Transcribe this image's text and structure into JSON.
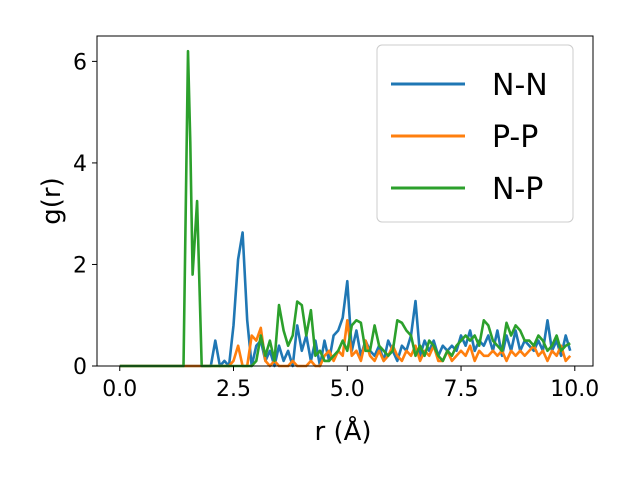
{
  "chart_data": {
    "type": "line",
    "title": "",
    "xlabel": "r (Å)",
    "ylabel": "g(r)",
    "xlim": [
      -0.5,
      10.4
    ],
    "ylim": [
      0,
      6.5
    ],
    "xticks": [
      0.0,
      2.5,
      5.0,
      7.5,
      10.0
    ],
    "xtick_labels": [
      "0.0",
      "2.5",
      "5.0",
      "7.5",
      "10.0"
    ],
    "yticks": [
      0,
      2,
      4,
      6
    ],
    "ytick_labels": [
      "0",
      "2",
      "4",
      "6"
    ],
    "grid": false,
    "legend_position": "top-right",
    "series": [
      {
        "name": "N-N",
        "color": "#1f77b4",
        "points": [
          [
            0,
            0
          ],
          [
            1.9,
            0
          ],
          [
            2.0,
            0
          ],
          [
            2.1,
            0.5
          ],
          [
            2.2,
            0
          ],
          [
            2.3,
            0.1
          ],
          [
            2.4,
            0
          ],
          [
            2.5,
            0.8
          ],
          [
            2.6,
            2.1
          ],
          [
            2.7,
            2.63
          ],
          [
            2.8,
            0.9
          ],
          [
            2.9,
            0
          ],
          [
            3.0,
            0.4
          ],
          [
            3.1,
            0.5
          ],
          [
            3.2,
            0.1
          ],
          [
            3.3,
            0.3
          ],
          [
            3.4,
            0
          ],
          [
            3.5,
            0.4
          ],
          [
            3.6,
            0.1
          ],
          [
            3.7,
            0.3
          ],
          [
            3.8,
            0
          ],
          [
            3.9,
            0.8
          ],
          [
            4.0,
            0.3
          ],
          [
            4.1,
            0.6
          ],
          [
            4.2,
            0.1
          ],
          [
            4.3,
            0.5
          ],
          [
            4.4,
            0
          ],
          [
            4.5,
            0.5
          ],
          [
            4.6,
            0.1
          ],
          [
            4.7,
            0.6
          ],
          [
            4.8,
            0.7
          ],
          [
            4.9,
            0.95
          ],
          [
            5.0,
            1.67
          ],
          [
            5.1,
            0.3
          ],
          [
            5.2,
            0.7
          ],
          [
            5.3,
            0.2
          ],
          [
            5.4,
            0.5
          ],
          [
            5.5,
            0.3
          ],
          [
            5.6,
            0.2
          ],
          [
            5.7,
            0.4
          ],
          [
            5.8,
            0.1
          ],
          [
            5.9,
            0.5
          ],
          [
            6.0,
            0.3
          ],
          [
            6.1,
            0.1
          ],
          [
            6.2,
            0.4
          ],
          [
            6.3,
            0.3
          ],
          [
            6.4,
            0.6
          ],
          [
            6.5,
            1.28
          ],
          [
            6.6,
            0.2
          ],
          [
            6.7,
            0.5
          ],
          [
            6.8,
            0.3
          ],
          [
            6.9,
            0.5
          ],
          [
            7.0,
            0.2
          ],
          [
            7.1,
            0.4
          ],
          [
            7.2,
            0.3
          ],
          [
            7.3,
            0.4
          ],
          [
            7.4,
            0.3
          ],
          [
            7.5,
            0.6
          ],
          [
            7.6,
            0.4
          ],
          [
            7.7,
            0.7
          ],
          [
            7.8,
            0.3
          ],
          [
            7.9,
            0.5
          ],
          [
            8.0,
            0.4
          ],
          [
            8.1,
            0.6
          ],
          [
            8.2,
            0.3
          ],
          [
            8.3,
            0.7
          ],
          [
            8.4,
            0.2
          ],
          [
            8.5,
            0.6
          ],
          [
            8.6,
            0.3
          ],
          [
            8.7,
            0.7
          ],
          [
            8.8,
            0.3
          ],
          [
            8.9,
            0.5
          ],
          [
            9.0,
            0.4
          ],
          [
            9.1,
            0.3
          ],
          [
            9.2,
            0.5
          ],
          [
            9.3,
            0.3
          ],
          [
            9.4,
            0.9
          ],
          [
            9.5,
            0.3
          ],
          [
            9.6,
            0.5
          ],
          [
            9.7,
            0.2
          ],
          [
            9.8,
            0.6
          ],
          [
            9.9,
            0.3
          ]
        ]
      },
      {
        "name": "P-P",
        "color": "#ff7f0e",
        "points": [
          [
            0,
            0
          ],
          [
            2.4,
            0
          ],
          [
            2.5,
            0.1
          ],
          [
            2.6,
            0.4
          ],
          [
            2.7,
            0
          ],
          [
            2.8,
            0
          ],
          [
            2.9,
            0.6
          ],
          [
            3.0,
            0.5
          ],
          [
            3.1,
            0.75
          ],
          [
            3.2,
            0.1
          ],
          [
            3.3,
            0
          ],
          [
            3.4,
            0.1
          ],
          [
            3.5,
            0
          ],
          [
            3.6,
            0
          ],
          [
            3.7,
            0
          ],
          [
            3.8,
            0.1
          ],
          [
            3.9,
            0
          ],
          [
            4.0,
            0
          ],
          [
            4.1,
            0
          ],
          [
            4.2,
            0.1
          ],
          [
            4.3,
            0
          ],
          [
            4.4,
            0
          ],
          [
            4.5,
            0.2
          ],
          [
            4.6,
            0.3
          ],
          [
            4.7,
            0.1
          ],
          [
            4.8,
            0.3
          ],
          [
            4.9,
            0.2
          ],
          [
            5.0,
            0.9
          ],
          [
            5.1,
            0.2
          ],
          [
            5.2,
            0.3
          ],
          [
            5.3,
            0.1
          ],
          [
            5.4,
            0.5
          ],
          [
            5.5,
            0.2
          ],
          [
            5.6,
            0.1
          ],
          [
            5.7,
            0.3
          ],
          [
            5.8,
            0.1
          ],
          [
            5.9,
            0.2
          ],
          [
            6.0,
            0.4
          ],
          [
            6.1,
            0.2
          ],
          [
            6.2,
            0.1
          ],
          [
            6.3,
            0.3
          ],
          [
            6.4,
            0.2
          ],
          [
            6.5,
            0.4
          ],
          [
            6.6,
            0.1
          ],
          [
            6.7,
            0.3
          ],
          [
            6.8,
            0.2
          ],
          [
            6.9,
            0.4
          ],
          [
            7.0,
            0.1
          ],
          [
            7.1,
            0.1
          ],
          [
            7.2,
            0.3
          ],
          [
            7.3,
            0.1
          ],
          [
            7.4,
            0.2
          ],
          [
            7.5,
            0.3
          ],
          [
            7.6,
            0.2
          ],
          [
            7.7,
            0.4
          ],
          [
            7.8,
            0.1
          ],
          [
            7.9,
            0.3
          ],
          [
            8.0,
            0.2
          ],
          [
            8.1,
            0.2
          ],
          [
            8.2,
            0.3
          ],
          [
            8.3,
            0.2
          ],
          [
            8.4,
            0.3
          ],
          [
            8.5,
            0.1
          ],
          [
            8.6,
            0.3
          ],
          [
            8.7,
            0.2
          ],
          [
            8.8,
            0.3
          ],
          [
            8.9,
            0.2
          ],
          [
            9.0,
            0.3
          ],
          [
            9.1,
            0.4
          ],
          [
            9.2,
            0.2
          ],
          [
            9.3,
            0.3
          ],
          [
            9.4,
            0.1
          ],
          [
            9.5,
            0.3
          ],
          [
            9.6,
            0.2
          ],
          [
            9.7,
            0.4
          ],
          [
            9.8,
            0.1
          ],
          [
            9.9,
            0.2
          ]
        ]
      },
      {
        "name": "N-P",
        "color": "#2ca02c",
        "points": [
          [
            0,
            0
          ],
          [
            1.4,
            0
          ],
          [
            1.5,
            6.2
          ],
          [
            1.55,
            4.4
          ],
          [
            1.6,
            1.8
          ],
          [
            1.7,
            3.25
          ],
          [
            1.8,
            0
          ],
          [
            1.9,
            0
          ],
          [
            2.0,
            0
          ],
          [
            2.9,
            0
          ],
          [
            3.0,
            0.1
          ],
          [
            3.1,
            0.6
          ],
          [
            3.2,
            0.2
          ],
          [
            3.3,
            0.5
          ],
          [
            3.4,
            0.1
          ],
          [
            3.5,
            1.2
          ],
          [
            3.6,
            0.7
          ],
          [
            3.7,
            0.4
          ],
          [
            3.8,
            0.6
          ],
          [
            3.9,
            1.27
          ],
          [
            4.0,
            1.2
          ],
          [
            4.1,
            0.6
          ],
          [
            4.2,
            1.1
          ],
          [
            4.3,
            0.2
          ],
          [
            4.4,
            0.3
          ],
          [
            4.5,
            0.1
          ],
          [
            4.6,
            0.1
          ],
          [
            4.7,
            0.2
          ],
          [
            4.8,
            0.3
          ],
          [
            4.9,
            0.5
          ],
          [
            5.0,
            0.3
          ],
          [
            5.1,
            0.8
          ],
          [
            5.2,
            0.9
          ],
          [
            5.3,
            0.85
          ],
          [
            5.4,
            0.3
          ],
          [
            5.5,
            0.3
          ],
          [
            5.6,
            0.8
          ],
          [
            5.7,
            0.4
          ],
          [
            5.8,
            0.3
          ],
          [
            5.9,
            0.2
          ],
          [
            6.0,
            0.3
          ],
          [
            6.1,
            0.9
          ],
          [
            6.2,
            0.85
          ],
          [
            6.3,
            0.7
          ],
          [
            6.4,
            0.6
          ],
          [
            6.5,
            0.2
          ],
          [
            6.6,
            0.4
          ],
          [
            6.7,
            0.2
          ],
          [
            6.8,
            0.5
          ],
          [
            6.9,
            0.4
          ],
          [
            7.0,
            0.2
          ],
          [
            7.1,
            0.1
          ],
          [
            7.2,
            0.3
          ],
          [
            7.3,
            0.2
          ],
          [
            7.4,
            0.4
          ],
          [
            7.5,
            0.5
          ],
          [
            7.6,
            0.6
          ],
          [
            7.7,
            0.5
          ],
          [
            7.8,
            0.6
          ],
          [
            7.9,
            0.4
          ],
          [
            8.0,
            0.9
          ],
          [
            8.1,
            0.8
          ],
          [
            8.2,
            0.5
          ],
          [
            8.3,
            0.4
          ],
          [
            8.4,
            0.3
          ],
          [
            8.5,
            0.85
          ],
          [
            8.6,
            0.6
          ],
          [
            8.7,
            0.8
          ],
          [
            8.8,
            0.7
          ],
          [
            8.9,
            0.5
          ],
          [
            9.0,
            0.5
          ],
          [
            9.1,
            0.4
          ],
          [
            9.2,
            0.6
          ],
          [
            9.3,
            0.5
          ],
          [
            9.4,
            0.3
          ],
          [
            9.5,
            0.4
          ],
          [
            9.6,
            0.6
          ],
          [
            9.7,
            0.3
          ],
          [
            9.8,
            0.4
          ],
          [
            9.9,
            0.45
          ]
        ]
      }
    ]
  }
}
